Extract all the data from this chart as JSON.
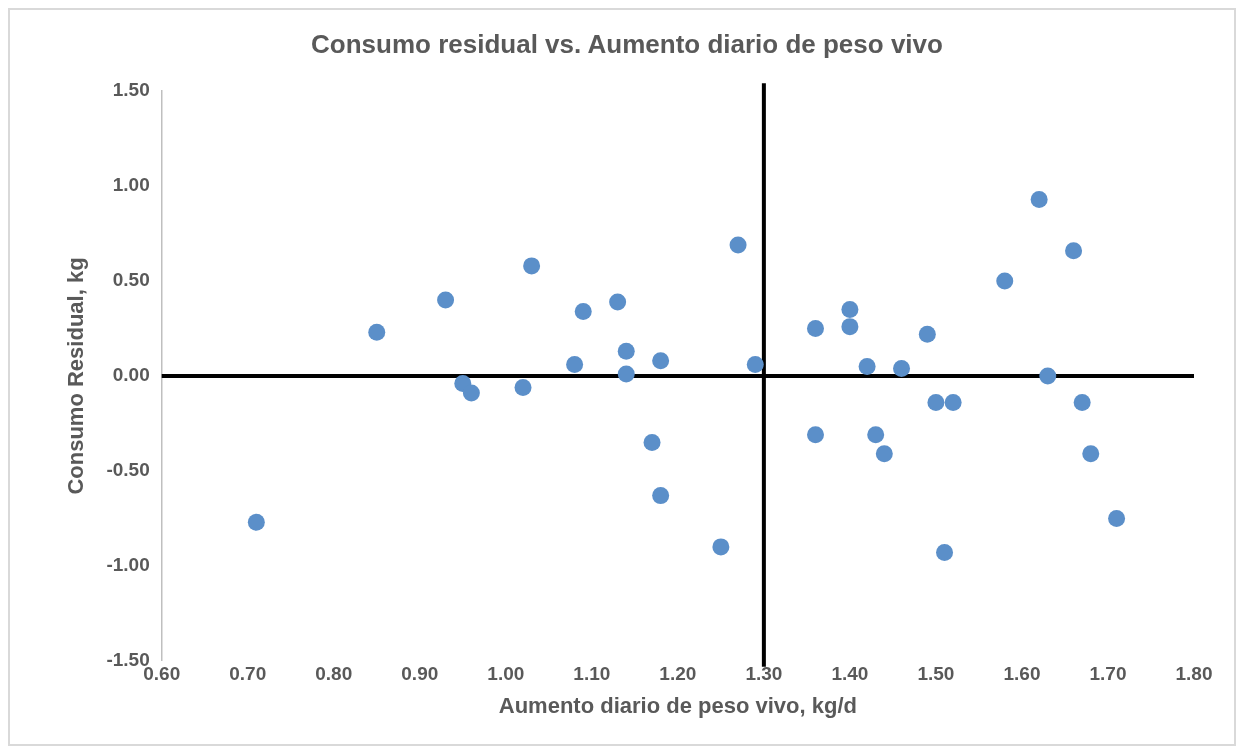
{
  "chart_data": {
    "type": "scatter",
    "title": "Consumo residual vs. Aumento diario de peso vivo",
    "xlabel": "Aumento diario de peso vivo, kg/d",
    "ylabel": "Consumo Residual, kg",
    "x": [
      0.71,
      0.85,
      0.93,
      0.95,
      0.96,
      1.02,
      1.03,
      1.08,
      1.09,
      1.13,
      1.14,
      1.14,
      1.17,
      1.18,
      1.18,
      1.25,
      1.27,
      1.29,
      1.36,
      1.36,
      1.4,
      1.4,
      1.42,
      1.43,
      1.44,
      1.46,
      1.49,
      1.5,
      1.52,
      1.51,
      1.58,
      1.62,
      1.63,
      1.66,
      1.67,
      1.68,
      1.71
    ],
    "series": [
      {
        "color": "#5b8fc9",
        "values": [
          -0.77,
          0.23,
          0.4,
          -0.04,
          -0.09,
          -0.06,
          0.58,
          0.06,
          0.34,
          0.39,
          0.13,
          0.01,
          -0.35,
          0.08,
          -0.63,
          -0.9,
          0.69,
          0.06,
          0.25,
          -0.31,
          0.35,
          0.26,
          0.05,
          -0.31,
          -0.41,
          0.04,
          0.22,
          -0.14,
          -0.14,
          -0.93,
          0.5,
          0.93,
          0.0,
          0.66,
          -0.14,
          -0.41,
          -0.75
        ]
      }
    ],
    "marker": "circle",
    "grid": false,
    "legend": false,
    "xlim": [
      0.6,
      1.8
    ],
    "xticks": [
      {
        "value": 0.6,
        "label": "0.60"
      },
      {
        "value": 0.7,
        "label": "0.70"
      },
      {
        "value": 0.8,
        "label": "0.80"
      },
      {
        "value": 0.9,
        "label": "0.90"
      },
      {
        "value": 1.0,
        "label": "1.00"
      },
      {
        "value": 1.1,
        "label": "1.10"
      },
      {
        "value": 1.2,
        "label": "1.20"
      },
      {
        "value": 1.3,
        "label": "1.30"
      },
      {
        "value": 1.4,
        "label": "1.40"
      },
      {
        "value": 1.5,
        "label": "1.50"
      },
      {
        "value": 1.6,
        "label": "1.60"
      },
      {
        "value": 1.7,
        "label": "1.70"
      },
      {
        "value": 1.8,
        "label": "1.80"
      }
    ],
    "ylim": [
      -1.5,
      1.5
    ],
    "yticks": [
      {
        "value": -1.5,
        "label": "-1.50"
      },
      {
        "value": -1.0,
        "label": "-1.00"
      },
      {
        "value": -0.5,
        "label": "-0.50"
      },
      {
        "value": 0,
        "label": "0.00"
      },
      {
        "value": 0.5,
        "label": "0.50"
      },
      {
        "value": 1.0,
        "label": "1.00"
      },
      {
        "value": 1.5,
        "label": "1.50"
      }
    ],
    "ref_lines": [
      {
        "axis": "x",
        "value": 1.3,
        "color": "#000000"
      },
      {
        "axis": "y",
        "value": 0,
        "color": "#000000"
      }
    ]
  }
}
